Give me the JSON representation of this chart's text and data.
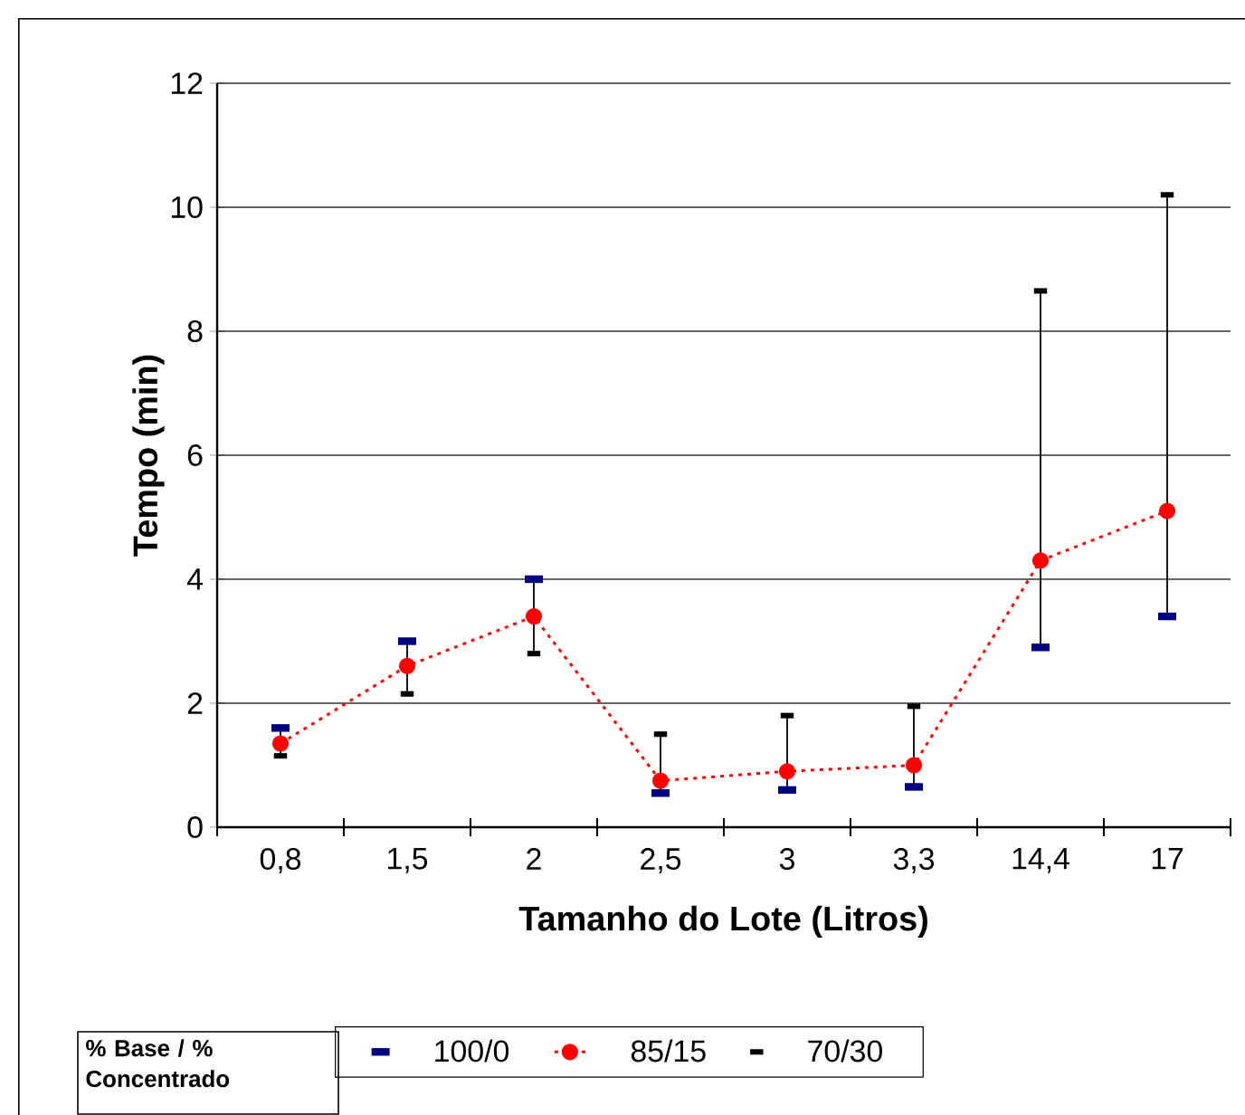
{
  "chart_data": {
    "type": "line",
    "xlabel": "Tamanho do Lote (Litros)",
    "ylabel": "Tempo (min)",
    "legend_title": "% Base / % Concentrado",
    "categories": [
      "0,8",
      "1,5",
      "2",
      "2,5",
      "3",
      "3,3",
      "14,4",
      "17"
    ],
    "ylim": [
      0,
      12
    ],
    "yticks": [
      0,
      2,
      4,
      6,
      8,
      10,
      12
    ],
    "grid": "y",
    "legend": "bottom",
    "series": [
      {
        "name": "100/0",
        "type": "scatter",
        "color": "#000080",
        "values": [
          1.6,
          3.0,
          4.0,
          0.55,
          0.6,
          0.65,
          2.9,
          3.4
        ]
      },
      {
        "name": "85/15",
        "marker": "circle",
        "line_style": "dotted",
        "color": "#ff0000",
        "values": [
          1.35,
          2.6,
          3.4,
          0.75,
          0.9,
          1.0,
          4.3,
          5.1
        ]
      },
      {
        "name": "70/30",
        "type": "scatter",
        "color": "#000000",
        "values": [
          1.15,
          2.15,
          2.8,
          1.5,
          1.8,
          1.95,
          8.65,
          10.2
        ]
      }
    ]
  }
}
